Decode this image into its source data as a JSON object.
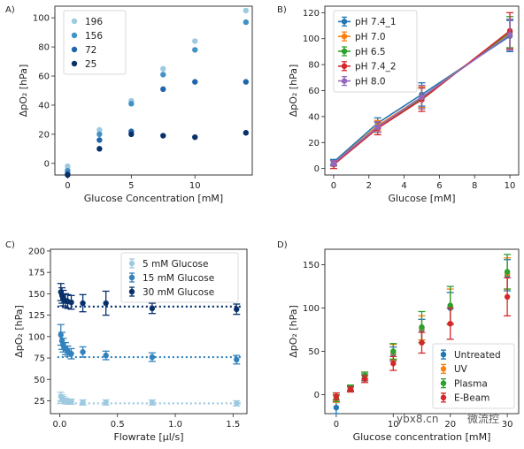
{
  "chart_data": [
    {
      "panel": "A)",
      "type": "scatter",
      "xlabel": "Glucose Concentration [mM]",
      "ylabel": "ΔpO₂ [hPa]",
      "xlim": [
        -1,
        14.5
      ],
      "ylim": [
        -8,
        108
      ],
      "xticks": [
        0,
        5,
        10
      ],
      "yticks": [
        0,
        20,
        40,
        60,
        80,
        100
      ],
      "legend": "top-left",
      "series": [
        {
          "name": "196",
          "color": "#9ecae1",
          "x": [
            0,
            2.5,
            5,
            7.5,
            10,
            14
          ],
          "y": [
            -2,
            23,
            43,
            65,
            84,
            105
          ]
        },
        {
          "name": "156",
          "color": "#4292c6",
          "x": [
            0,
            2.5,
            5,
            7.5,
            10,
            14
          ],
          "y": [
            -5,
            20,
            41,
            61,
            78,
            97
          ]
        },
        {
          "name": "72",
          "color": "#2166ac",
          "x": [
            0,
            2.5,
            5,
            7.5,
            10,
            14
          ],
          "y": [
            -7,
            16,
            22,
            51,
            56,
            56
          ]
        },
        {
          "name": "25",
          "color": "#08306b",
          "x": [
            0,
            2.5,
            5,
            7.5,
            10,
            14
          ],
          "y": [
            -8,
            10,
            20,
            19,
            18,
            21
          ]
        }
      ]
    },
    {
      "panel": "B)",
      "type": "line",
      "xlabel": "Glucose [mM]",
      "ylabel": "ΔpO₂ [hPa]",
      "xlim": [
        -0.5,
        10.5
      ],
      "ylim": [
        -5,
        125
      ],
      "xticks": [
        0,
        2,
        4,
        6,
        8,
        10
      ],
      "yticks": [
        0,
        20,
        40,
        60,
        80,
        100,
        120
      ],
      "legend": "top-left",
      "series": [
        {
          "name": "pH 7.4_1",
          "color": "#1f77b4",
          "x": [
            0,
            2.5,
            5,
            10
          ],
          "y": [
            5,
            35,
            57,
            102
          ],
          "err": [
            2,
            4,
            9,
            12
          ]
        },
        {
          "name": "pH 7.0",
          "color": "#ff7f0e",
          "x": [
            0,
            2.5,
            5,
            10
          ],
          "y": [
            4,
            33,
            55,
            104
          ],
          "err": [
            2,
            4,
            8,
            11
          ]
        },
        {
          "name": "pH 6.5",
          "color": "#2ca02c",
          "x": [
            0,
            2.5,
            5,
            10
          ],
          "y": [
            4,
            32,
            54,
            105
          ],
          "err": [
            2,
            4,
            8,
            12
          ]
        },
        {
          "name": "pH 7.4_2",
          "color": "#d62728",
          "x": [
            0,
            2.5,
            5,
            10
          ],
          "y": [
            3,
            31,
            53,
            106
          ],
          "err": [
            3,
            5,
            9,
            14
          ]
        },
        {
          "name": "pH 8.0",
          "color": "#9467bd",
          "x": [
            0,
            2.5,
            5,
            10
          ],
          "y": [
            4,
            32,
            55,
            103
          ],
          "err": [
            2,
            4,
            9,
            12
          ]
        }
      ]
    },
    {
      "panel": "C)",
      "type": "scatter",
      "xlabel": "Flowrate [µl/s]",
      "ylabel": "ΔpO₂ [hPa]",
      "xlim": [
        -0.08,
        1.62
      ],
      "ylim": [
        10,
        202
      ],
      "xticks": [
        0.0,
        0.5,
        1.0,
        1.5
      ],
      "xticklabels": [
        "0.0",
        "0.5",
        "1.0",
        "1.5"
      ],
      "yticks": [
        25,
        50,
        75,
        100,
        125,
        150,
        175,
        200
      ],
      "legend": "top-right",
      "series": [
        {
          "name": "5 mM Glucose",
          "color": "#9ecae1",
          "x": [
            0.01,
            0.02,
            0.03,
            0.05,
            0.07,
            0.1,
            0.2,
            0.4,
            0.8,
            1.53
          ],
          "y": [
            30,
            28,
            26,
            25,
            24,
            24,
            23,
            23,
            23,
            22
          ],
          "err": [
            5,
            4,
            4,
            3,
            3,
            3,
            3,
            3,
            3,
            3
          ],
          "fit": 22
        },
        {
          "name": "15 mM Glucose",
          "color": "#3182bd",
          "x": [
            0.01,
            0.02,
            0.03,
            0.05,
            0.07,
            0.1,
            0.2,
            0.4,
            0.8,
            1.53
          ],
          "y": [
            102,
            95,
            90,
            86,
            83,
            80,
            82,
            78,
            76,
            73
          ],
          "err": [
            12,
            10,
            8,
            7,
            6,
            6,
            6,
            5,
            5,
            5
          ],
          "fit": 76
        },
        {
          "name": "30 mM Glucose",
          "color": "#08306b",
          "x": [
            0.01,
            0.02,
            0.03,
            0.05,
            0.07,
            0.1,
            0.2,
            0.4,
            0.8,
            1.53
          ],
          "y": [
            152,
            148,
            145,
            142,
            141,
            140,
            139,
            139,
            133,
            132
          ],
          "err": [
            10,
            9,
            9,
            8,
            8,
            8,
            10,
            14,
            6,
            6
          ],
          "fit": 135
        }
      ]
    },
    {
      "panel": "D)",
      "type": "scatter",
      "xlabel": "Glucose concentration [mM]",
      "ylabel": "ΔpO₂ [hPa]",
      "xlim": [
        -2,
        32
      ],
      "ylim": [
        -22,
        168
      ],
      "xticks": [
        0,
        10,
        20,
        30
      ],
      "yticks": [
        0,
        50,
        100,
        150
      ],
      "legend": "bottom-right",
      "series": [
        {
          "name": "Untreated",
          "color": "#1f77b4",
          "x": [
            0,
            2.5,
            5,
            10,
            15,
            20,
            30
          ],
          "y": [
            -15,
            7,
            20,
            47,
            75,
            100,
            138
          ],
          "err": [
            7,
            3,
            4,
            8,
            12,
            18,
            18
          ]
        },
        {
          "name": "UV",
          "color": "#ff7f0e",
          "x": [
            0,
            2.5,
            5,
            10,
            15,
            20,
            30
          ],
          "y": [
            -5,
            8,
            22,
            49,
            77,
            102,
            140
          ],
          "err": [
            4,
            3,
            4,
            9,
            14,
            20,
            18
          ]
        },
        {
          "name": "Plasma",
          "color": "#2ca02c",
          "x": [
            0,
            2.5,
            5,
            10,
            15,
            20,
            30
          ],
          "y": [
            -4,
            8,
            22,
            50,
            78,
            103,
            142
          ],
          "err": [
            4,
            3,
            4,
            9,
            18,
            22,
            20
          ]
        },
        {
          "name": "E-Beam",
          "color": "#d62728",
          "x": [
            0,
            2.5,
            5,
            10,
            15,
            20,
            30
          ],
          "y": [
            -2,
            6,
            18,
            36,
            60,
            82,
            113
          ],
          "err": [
            4,
            3,
            4,
            8,
            12,
            18,
            22
          ]
        }
      ]
    }
  ],
  "watermark": {
    "left_text": "ybx8.cn",
    "right_text": "微流控"
  }
}
